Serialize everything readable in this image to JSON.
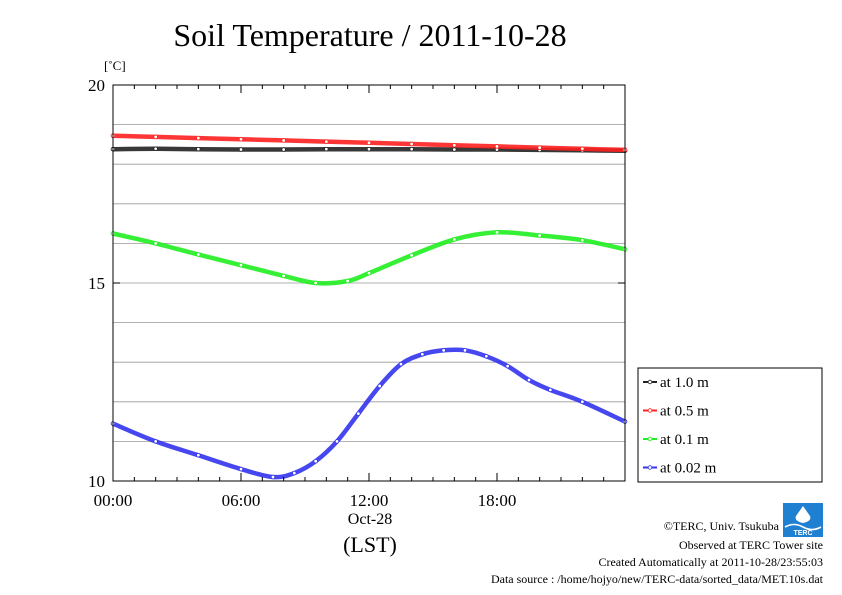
{
  "chart_data": {
    "type": "line",
    "title": "Soil Temperature / 2011-10-28",
    "ylabel": "[˚C]",
    "xlabel": "(LST)",
    "date_label": "Oct-28",
    "xlim": [
      0,
      24
    ],
    "ylim": [
      10,
      20
    ],
    "x_ticks": [
      {
        "value": 0,
        "label": "00:00"
      },
      {
        "value": 6,
        "label": "06:00"
      },
      {
        "value": 12,
        "label": "12:00"
      },
      {
        "value": 18,
        "label": "18:00"
      }
    ],
    "y_ticks": [
      {
        "value": 10,
        "label": "10"
      },
      {
        "value": 15,
        "label": "15"
      },
      {
        "value": 20,
        "label": "20"
      }
    ],
    "grid": true,
    "y_grid_step": 1,
    "legend_position": "right",
    "series": [
      {
        "name": "at 1.0 m",
        "color": "#222222",
        "x": [
          0,
          2,
          4,
          6,
          8,
          10,
          12,
          14,
          16,
          18,
          20,
          22,
          24
        ],
        "y": [
          18.38,
          18.39,
          18.38,
          18.37,
          18.37,
          18.38,
          18.38,
          18.38,
          18.37,
          18.37,
          18.36,
          18.35,
          18.34
        ]
      },
      {
        "name": "at 0.5 m",
        "color": "#ff2020",
        "x": [
          0,
          2,
          4,
          6,
          8,
          10,
          12,
          14,
          16,
          18,
          20,
          22,
          24
        ],
        "y": [
          18.72,
          18.69,
          18.66,
          18.63,
          18.6,
          18.57,
          18.54,
          18.51,
          18.48,
          18.45,
          18.42,
          18.39,
          18.36
        ]
      },
      {
        "name": "at 0.1 m",
        "color": "#20ee20",
        "x": [
          0,
          2,
          4,
          6,
          8,
          9.5,
          11,
          12,
          14,
          16,
          18,
          20,
          22,
          24
        ],
        "y": [
          16.25,
          16.0,
          15.72,
          15.45,
          15.18,
          15.0,
          15.05,
          15.25,
          15.7,
          16.1,
          16.28,
          16.2,
          16.08,
          15.85
        ]
      },
      {
        "name": "at 0.02 m",
        "color": "#3333ee",
        "x": [
          0,
          2,
          4,
          6,
          7.5,
          8.5,
          9.5,
          10.5,
          11.5,
          12.5,
          13.5,
          14.5,
          15.5,
          16.5,
          17.5,
          18.5,
          19.5,
          20.5,
          22,
          24
        ],
        "y": [
          11.45,
          11.0,
          10.65,
          10.3,
          10.1,
          10.2,
          10.5,
          11.0,
          11.7,
          12.4,
          12.95,
          13.2,
          13.3,
          13.3,
          13.15,
          12.9,
          12.55,
          12.3,
          12.0,
          11.5
        ]
      }
    ]
  },
  "credits": {
    "line1": "©TERC, Univ. Tsukuba",
    "line2": "Observed at TERC Tower site",
    "line3": "Created Automatically at 2011-10-28/23:55:03",
    "line4": "Data source : /home/hojyo/new/TERC-data/sorted_data/MET.10s.dat",
    "logo_text": "TERC"
  }
}
